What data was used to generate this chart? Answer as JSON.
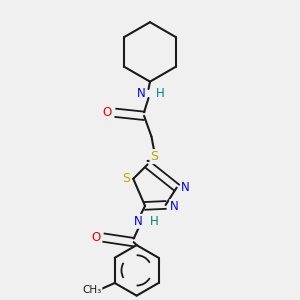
{
  "background_color": "#f0f0f0",
  "bond_color": "#1a1a1a",
  "atom_colors": {
    "N": "#0000ee",
    "H": "#008080",
    "O": "#ee0000",
    "S": "#bbaa00",
    "C": "#1a1a1a"
  },
  "figsize": [
    3.0,
    3.0
  ],
  "dpi": 100
}
